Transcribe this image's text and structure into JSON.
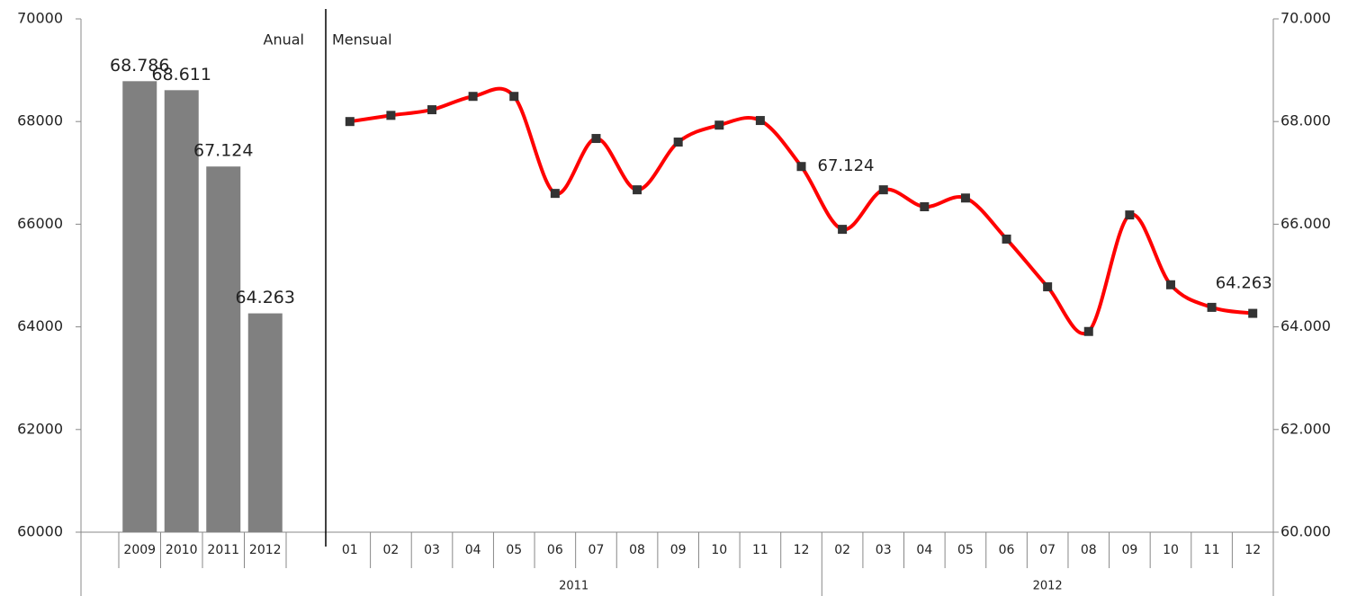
{
  "chart_data": [
    {
      "type": "bar",
      "annotation": "Anual",
      "categories": [
        "2009",
        "2010",
        "2011",
        "2012"
      ],
      "values": [
        68786,
        68611,
        67124,
        64263
      ],
      "value_labels": [
        "68.786",
        "68.611",
        "67.124",
        "64.263"
      ],
      "color": "#808080",
      "ylim": [
        60000,
        70000
      ],
      "yticks": [
        60000,
        62000,
        64000,
        66000,
        68000,
        70000
      ]
    },
    {
      "type": "line",
      "annotation": "Mensual",
      "categories": [
        "01",
        "02",
        "03",
        "04",
        "05",
        "06",
        "07",
        "08",
        "09",
        "10",
        "11",
        "12",
        "02",
        "03",
        "04",
        "05",
        "06",
        "07",
        "08",
        "09",
        "10",
        "11",
        "12"
      ],
      "groups": [
        "2011",
        "2012"
      ],
      "values": [
        68000,
        68120,
        68230,
        68490,
        68490,
        66600,
        67670,
        66670,
        67600,
        67930,
        68020,
        67124,
        65900,
        66670,
        66340,
        66510,
        65710,
        64780,
        63910,
        66180,
        64820,
        64380,
        64263
      ],
      "value_labels": [
        null,
        null,
        null,
        null,
        null,
        null,
        null,
        null,
        null,
        null,
        null,
        "67.124",
        null,
        null,
        null,
        null,
        null,
        null,
        null,
        null,
        null,
        null,
        "64.263"
      ],
      "color": "#ff0000",
      "marker_color": "#333333",
      "axis": "y2",
      "y2lim": [
        60000,
        70000
      ],
      "y2ticks": [
        {
          "value": 60000,
          "label": "60.000"
        },
        {
          "value": 62000,
          "label": "62.000"
        },
        {
          "value": 64000,
          "label": "64.000"
        },
        {
          "value": 66000,
          "label": "66.000"
        },
        {
          "value": 68000,
          "label": "68.000"
        },
        {
          "value": 70000,
          "label": "70.000"
        }
      ]
    }
  ]
}
